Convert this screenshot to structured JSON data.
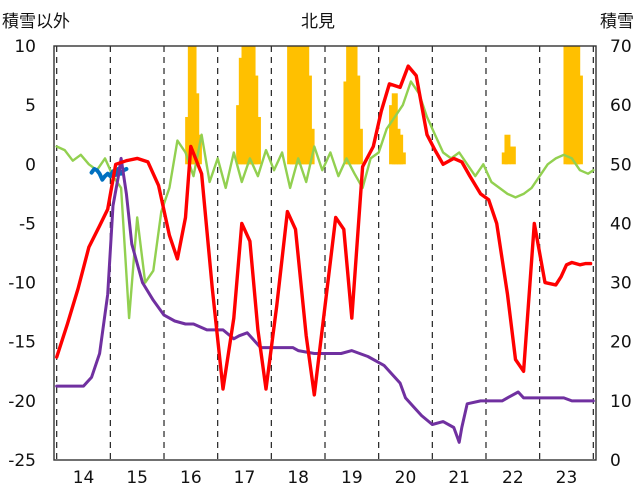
{
  "chart_data": {
    "type": "line",
    "title": "北見",
    "ylabel_left": "積雪以外",
    "ylabel_right": "積雪",
    "x_ticks": [
      "14",
      "15",
      "16",
      "17",
      "18",
      "19",
      "20",
      "21",
      "22",
      "23"
    ],
    "xlim": [
      13.45,
      23.55
    ],
    "ylim_left": [
      -25,
      10
    ],
    "ylim_right": [
      0,
      70
    ],
    "y_ticks_left": [
      "10",
      "5",
      "0",
      "-5",
      "-10",
      "-15",
      "-20",
      "-25"
    ],
    "y_ticks_right": [
      "70",
      "60",
      "50",
      "40",
      "30",
      "20",
      "10",
      "0"
    ],
    "grid": "dashed-vertical",
    "colors": {
      "red": "#ff0000",
      "green": "#92d050",
      "purple": "#7030a0",
      "orange": "#ffc000",
      "blue": "#0070c0"
    },
    "series": [
      {
        "axis": "left",
        "color": "red",
        "x": [
          13.5,
          13.7,
          13.9,
          14.1,
          14.3,
          14.45,
          14.6,
          14.8,
          15.0,
          15.2,
          15.4,
          15.6,
          15.75,
          15.9,
          16.0,
          16.2,
          16.4,
          16.6,
          16.8,
          16.95,
          17.1,
          17.25,
          17.4,
          17.6,
          17.8,
          17.95,
          18.15,
          18.3,
          18.5,
          18.7,
          18.85,
          19.0,
          19.2,
          19.4,
          19.55,
          19.7,
          19.9,
          20.05,
          20.2,
          20.4,
          20.55,
          20.7,
          20.9,
          21.05,
          21.2,
          21.4,
          21.55,
          21.7,
          21.9,
          22.05,
          22.2,
          22.4,
          22.6,
          22.8,
          22.9,
          23.0,
          23.1,
          23.25,
          23.35,
          23.45
        ],
        "y": [
          -16.3,
          -13.5,
          -10.5,
          -7.0,
          -5.2,
          -3.8,
          0.0,
          0.3,
          0.5,
          0.2,
          -1.8,
          -6.0,
          -8.0,
          -4.5,
          1.5,
          -0.8,
          -10.5,
          -19.0,
          -13.0,
          -5.0,
          -6.5,
          -14.0,
          -19.0,
          -12.0,
          -4.0,
          -5.5,
          -14.5,
          -19.5,
          -12.0,
          -4.5,
          -5.5,
          -13.0,
          -0.2,
          1.5,
          4.5,
          6.8,
          6.5,
          8.3,
          7.5,
          2.5,
          1.2,
          0.0,
          0.5,
          0.2,
          -1.0,
          -2.5,
          -3.0,
          -5.0,
          -11.0,
          -16.5,
          -17.5,
          -5.0,
          -10.0,
          -10.2,
          -9.5,
          -8.5,
          -8.3,
          -8.5,
          -8.4,
          -8.4
        ]
      },
      {
        "axis": "left",
        "color": "green",
        "x": [
          13.5,
          13.65,
          13.8,
          13.95,
          14.1,
          14.25,
          14.4,
          14.55,
          14.7,
          14.85,
          15.0,
          15.15,
          15.3,
          15.45,
          15.6,
          15.75,
          15.9,
          16.05,
          16.2,
          16.35,
          16.5,
          16.65,
          16.8,
          16.95,
          17.1,
          17.25,
          17.4,
          17.55,
          17.7,
          17.85,
          18.0,
          18.15,
          18.3,
          18.45,
          18.6,
          18.75,
          18.9,
          19.05,
          19.2,
          19.35,
          19.5,
          19.65,
          19.8,
          19.95,
          20.1,
          20.25,
          20.4,
          20.55,
          20.7,
          20.85,
          21.0,
          21.15,
          21.3,
          21.45,
          21.6,
          21.75,
          21.9,
          22.05,
          22.2,
          22.35,
          22.5,
          22.65,
          22.8,
          22.95,
          23.1,
          23.25,
          23.4,
          23.5
        ],
        "y": [
          1.5,
          1.2,
          0.3,
          0.8,
          0.0,
          -0.5,
          0.5,
          -1.0,
          -2.0,
          -13.0,
          -4.5,
          -10.0,
          -9.0,
          -4.0,
          -2.0,
          2.0,
          1.0,
          -1.0,
          2.5,
          -1.5,
          0.5,
          -2.0,
          1.0,
          -1.5,
          0.5,
          -1.0,
          1.2,
          -0.5,
          1.0,
          -2.0,
          0.5,
          -1.5,
          1.5,
          -0.5,
          1.0,
          -1.0,
          0.5,
          -0.8,
          -2.0,
          0.5,
          1.0,
          3.0,
          4.0,
          5.0,
          7.0,
          6.0,
          4.0,
          2.5,
          1.0,
          0.5,
          1.0,
          0.0,
          -1.0,
          0.0,
          -1.5,
          -2.0,
          -2.5,
          -2.8,
          -2.5,
          -2.0,
          -1.0,
          0.0,
          0.5,
          0.8,
          0.5,
          -0.5,
          -0.8,
          -0.5
        ]
      },
      {
        "axis": "right",
        "color": "purple",
        "x": [
          13.5,
          13.9,
          14.0,
          14.15,
          14.3,
          14.45,
          14.55,
          14.65,
          14.7,
          14.8,
          14.9,
          15.1,
          15.3,
          15.5,
          15.7,
          15.9,
          16.05,
          16.3,
          16.6,
          16.8,
          16.9,
          17.05,
          17.3,
          17.6,
          17.9,
          18.0,
          18.3,
          18.6,
          18.8,
          19.0,
          19.3,
          19.6,
          19.9,
          20.0,
          20.15,
          20.3,
          20.5,
          20.7,
          20.9,
          21.0,
          21.05,
          21.15,
          21.4,
          21.6,
          21.8,
          22.0,
          22.1,
          22.2,
          22.4,
          22.7,
          22.95,
          23.1,
          23.3,
          23.5
        ],
        "y": [
          12.5,
          12.5,
          12.5,
          14.0,
          18.0,
          28.0,
          43.0,
          48.0,
          51.0,
          45.0,
          36.5,
          30.0,
          27.0,
          24.5,
          23.5,
          23.0,
          23.0,
          22.0,
          22.0,
          20.5,
          21.0,
          21.5,
          19.0,
          19.0,
          19.0,
          18.5,
          18.0,
          18.0,
          18.0,
          18.5,
          17.5,
          16.0,
          13.0,
          10.5,
          9.0,
          7.5,
          6.0,
          6.5,
          5.5,
          3.0,
          5.5,
          9.5,
          10.0,
          10.0,
          10.0,
          11.0,
          11.5,
          10.5,
          10.5,
          10.5,
          10.5,
          10.0,
          10.0,
          10.0
        ]
      },
      {
        "axis": "left",
        "color": "blue",
        "x": [
          14.15,
          14.2,
          14.25,
          14.3,
          14.35,
          14.4,
          14.45,
          14.5,
          14.55,
          14.6,
          14.65,
          14.7,
          14.75,
          14.8
        ],
        "y": [
          -0.7,
          -0.4,
          -0.5,
          -0.8,
          -1.3,
          -1.0,
          -0.8,
          -1.0,
          -0.6,
          -0.9,
          -0.4,
          -0.8,
          -0.5,
          -0.4
        ]
      },
      {
        "axis": "right",
        "type": "bar",
        "color": "orange",
        "x": [
          15.95,
          16.0,
          16.05,
          16.1,
          16.15,
          16.9,
          16.95,
          17.0,
          17.05,
          17.1,
          17.15,
          17.2,
          17.25,
          17.85,
          17.9,
          17.95,
          18.0,
          18.05,
          18.1,
          18.15,
          18.2,
          18.25,
          18.9,
          18.95,
          19.0,
          19.05,
          19.1,
          19.15,
          19.75,
          19.8,
          19.85,
          19.9,
          19.95,
          21.85,
          21.9,
          22.0,
          23.0,
          23.05,
          23.1,
          23.15,
          23.2,
          23.25
        ],
        "y": [
          58,
          70,
          70,
          62,
          55,
          60,
          68,
          70,
          70,
          70,
          70,
          65,
          58,
          70,
          70,
          70,
          70,
          70,
          70,
          70,
          65,
          56,
          64,
          70,
          70,
          70,
          65,
          56,
          60,
          62,
          56,
          55,
          52,
          52,
          55,
          53,
          70,
          70,
          70,
          70,
          70,
          65
        ]
      }
    ]
  }
}
